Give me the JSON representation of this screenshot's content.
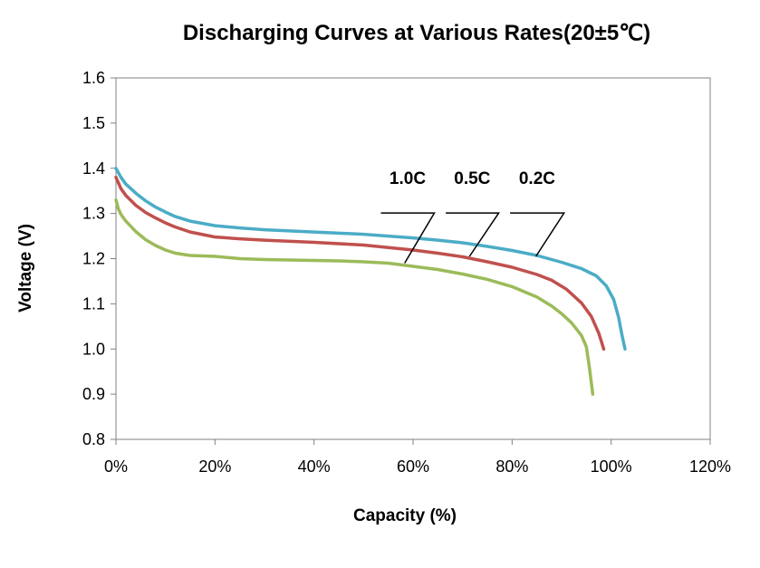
{
  "chart_data": {
    "type": "line",
    "title": "Discharging Curves at Various Rates(20±5℃)",
    "xlabel": "Capacity (%)",
    "ylabel": "Voltage (V)",
    "xlim": [
      0,
      120
    ],
    "ylim": [
      0.8,
      1.6
    ],
    "x_ticks": [
      0,
      20,
      40,
      60,
      80,
      100,
      120
    ],
    "x_tick_labels": [
      "0%",
      "20%",
      "40%",
      "60%",
      "80%",
      "100%",
      "120%"
    ],
    "y_ticks": [
      0.8,
      0.9,
      1.0,
      1.1,
      1.2,
      1.3,
      1.4,
      1.5,
      1.6
    ],
    "y_tick_labels": [
      "0.8",
      "0.9",
      "1.0",
      "1.1",
      "1.2",
      "1.3",
      "1.4",
      "1.5",
      "1.6"
    ],
    "grid": false,
    "legend": "none",
    "series": [
      {
        "name": "0.2C",
        "color": "#4bacc6",
        "x": [
          0,
          1,
          2,
          4,
          6,
          8,
          10,
          12,
          15,
          20,
          25,
          30,
          40,
          50,
          60,
          65,
          70,
          75,
          80,
          85,
          90,
          94,
          97,
          99,
          100.5,
          101.5,
          102.2,
          102.8
        ],
        "y": [
          1.4,
          1.38,
          1.365,
          1.345,
          1.328,
          1.314,
          1.303,
          1.293,
          1.283,
          1.273,
          1.268,
          1.264,
          1.259,
          1.254,
          1.246,
          1.241,
          1.235,
          1.227,
          1.218,
          1.207,
          1.192,
          1.178,
          1.162,
          1.14,
          1.11,
          1.07,
          1.03,
          1.0
        ]
      },
      {
        "name": "0.5C",
        "color": "#c0504d",
        "x": [
          0,
          1,
          2,
          4,
          6,
          8,
          10,
          12,
          15,
          20,
          25,
          30,
          40,
          50,
          60,
          65,
          70,
          75,
          80,
          85,
          88,
          91,
          94,
          96,
          97.5,
          98.5
        ],
        "y": [
          1.38,
          1.355,
          1.34,
          1.318,
          1.302,
          1.29,
          1.279,
          1.27,
          1.259,
          1.248,
          1.244,
          1.241,
          1.236,
          1.23,
          1.219,
          1.212,
          1.204,
          1.193,
          1.181,
          1.165,
          1.152,
          1.132,
          1.102,
          1.072,
          1.035,
          1.0
        ]
      },
      {
        "name": "1.0C",
        "color": "#9bbb59",
        "x": [
          0,
          0.5,
          1,
          2,
          4,
          6,
          8,
          10,
          12,
          15,
          20,
          25,
          30,
          35,
          40,
          45,
          50,
          55,
          60,
          65,
          70,
          75,
          80,
          85,
          88,
          90,
          92,
          94,
          95,
          95.6,
          96.3
        ],
        "y": [
          1.33,
          1.31,
          1.298,
          1.283,
          1.26,
          1.242,
          1.229,
          1.219,
          1.212,
          1.207,
          1.205,
          1.2,
          1.198,
          1.197,
          1.196,
          1.195,
          1.193,
          1.19,
          1.183,
          1.176,
          1.166,
          1.154,
          1.138,
          1.115,
          1.095,
          1.078,
          1.058,
          1.03,
          1.005,
          0.96,
          0.9
        ]
      }
    ],
    "annotations": [
      {
        "text": "1.0C",
        "leader": [
          [
            53.5,
            1.301
          ],
          [
            64.3,
            1.301
          ],
          [
            58.3,
            1.19
          ]
        ]
      },
      {
        "text": "0.5C",
        "leader": [
          [
            66.6,
            1.301
          ],
          [
            77.3,
            1.301
          ],
          [
            71.4,
            1.205
          ]
        ]
      },
      {
        "text": "0.2C",
        "leader": [
          [
            79.6,
            1.301
          ],
          [
            90.5,
            1.301
          ],
          [
            84.8,
            1.205
          ]
        ]
      }
    ]
  }
}
